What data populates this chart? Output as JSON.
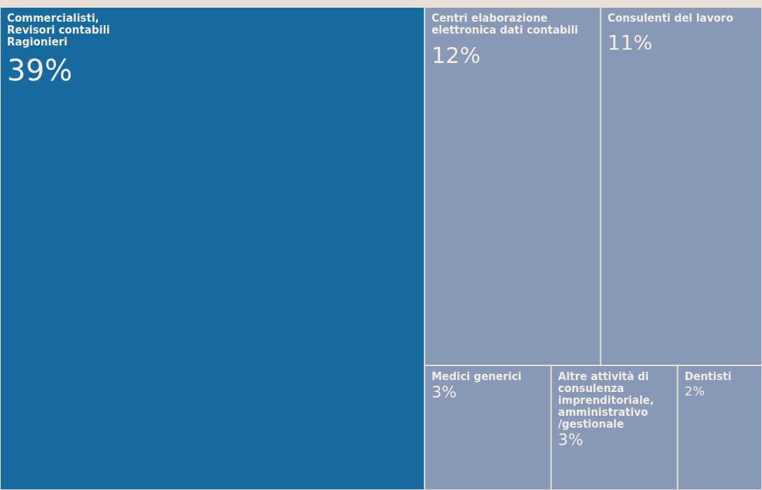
{
  "chart_data": {
    "type": "other",
    "categories": [
      "Commercialisti, Revisori contabili Ragionieri",
      "Centri elaborazione elettronica dati contabili",
      "Consulenti del lavoro",
      "Medici generici",
      "Altre attività di consulenza imprenditoriale, amministrativo /gestionale",
      "Dentisti"
    ],
    "values": [
      39,
      12,
      11,
      3,
      3,
      2
    ],
    "value_labels": [
      "39%",
      "12%",
      "11%",
      "3%",
      "3%",
      "2%"
    ],
    "colors": [
      "#166a9e",
      "#8799b6",
      "#8799b6",
      "#8799b6",
      "#8799b6",
      "#8799b6"
    ]
  }
}
